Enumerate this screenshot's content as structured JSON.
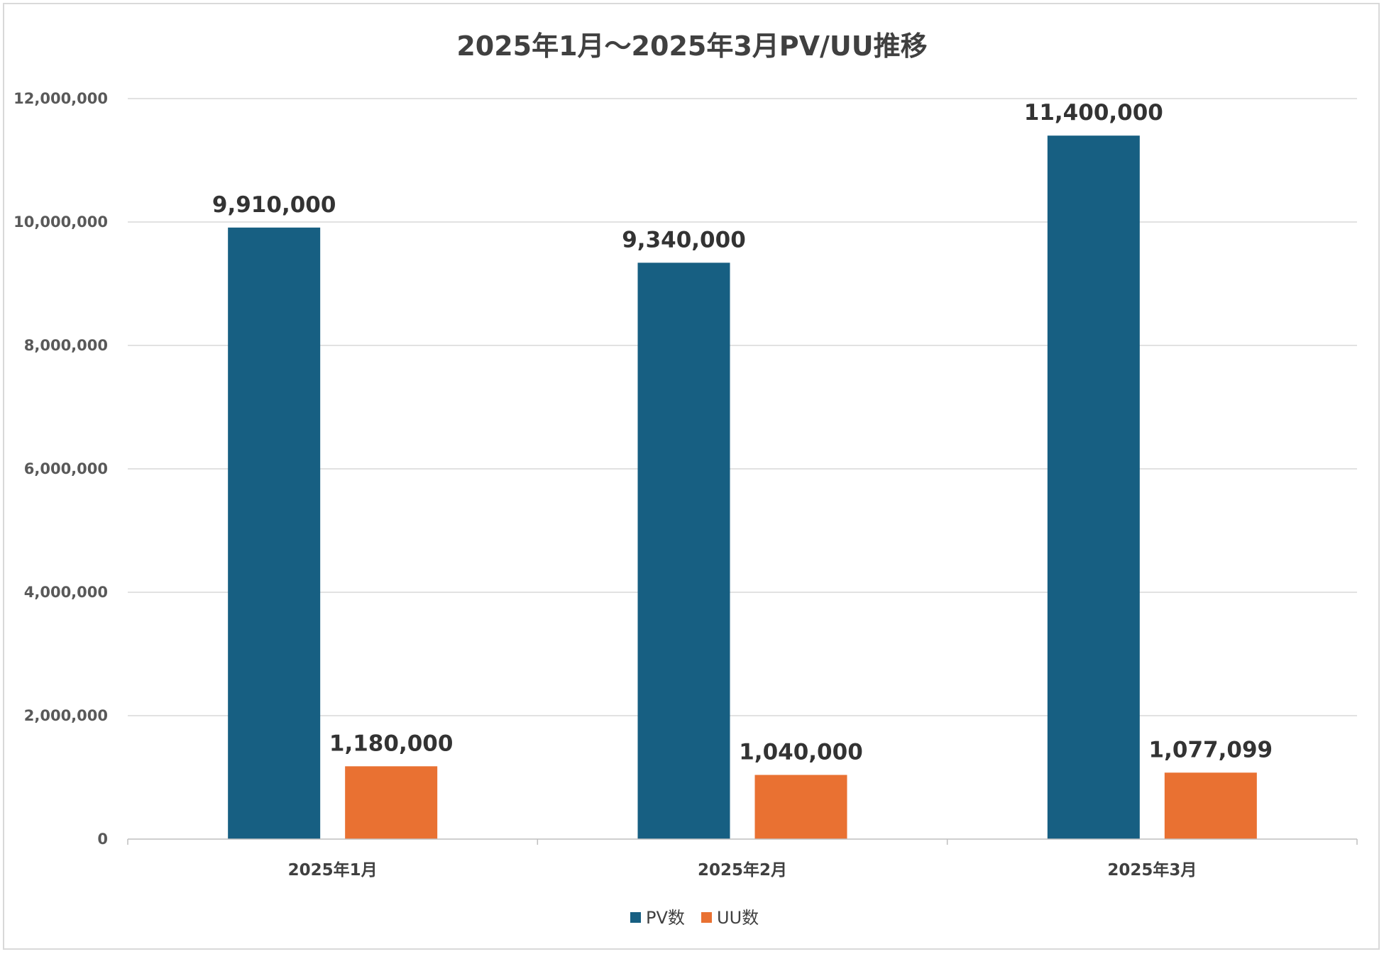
{
  "chart_data": {
    "type": "bar",
    "title": "2025年1月～2025年3月PV/UU推移",
    "categories": [
      "2025年1月",
      "2025年2月",
      "2025年3月"
    ],
    "series": [
      {
        "name": "PV数",
        "values": [
          9910000,
          9340000,
          11400000
        ],
        "color": "#175f82"
      },
      {
        "name": "UU数",
        "values": [
          1180000,
          1040000,
          1077099
        ],
        "color": "#e97132"
      }
    ],
    "data_labels": [
      [
        "9,910,000",
        "9,340,000",
        "11,400,000"
      ],
      [
        "1,180,000",
        "1,040,000",
        "1,077,099"
      ]
    ],
    "ylim": [
      0,
      12000000
    ],
    "yticks": [
      0,
      2000000,
      4000000,
      6000000,
      8000000,
      10000000,
      12000000
    ],
    "ytick_labels": [
      "0",
      "2,000,000",
      "4,000,000",
      "6,000,000",
      "8,000,000",
      "10,000,000",
      "12,000,000"
    ],
    "grid": true,
    "legend_position": "bottom-center",
    "colors": {
      "grid": "#d9d9d9",
      "axis": "#bfbfbf"
    }
  }
}
